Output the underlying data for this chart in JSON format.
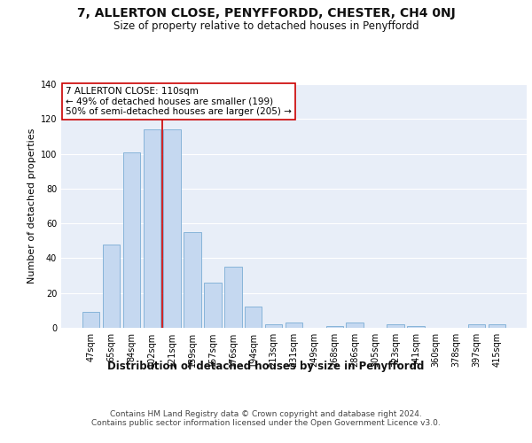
{
  "title": "7, ALLERTON CLOSE, PENYFFORDD, CHESTER, CH4 0NJ",
  "subtitle": "Size of property relative to detached houses in Penyffordd",
  "xlabel": "Distribution of detached houses by size in Penyffordd",
  "ylabel": "Number of detached properties",
  "categories": [
    "47sqm",
    "65sqm",
    "84sqm",
    "102sqm",
    "121sqm",
    "139sqm",
    "157sqm",
    "176sqm",
    "194sqm",
    "213sqm",
    "231sqm",
    "249sqm",
    "268sqm",
    "286sqm",
    "305sqm",
    "323sqm",
    "341sqm",
    "360sqm",
    "378sqm",
    "397sqm",
    "415sqm"
  ],
  "values": [
    9,
    48,
    101,
    114,
    114,
    55,
    26,
    35,
    12,
    2,
    3,
    0,
    1,
    3,
    0,
    2,
    1,
    0,
    0,
    2,
    2
  ],
  "bar_color": "#c5d8f0",
  "bar_edge_color": "#7aadd4",
  "background_color": "#e8eef8",
  "grid_color": "#ffffff",
  "vline_x": 3.5,
  "vline_color": "#cc0000",
  "annotation_text": "7 ALLERTON CLOSE: 110sqm\n← 49% of detached houses are smaller (199)\n50% of semi-detached houses are larger (205) →",
  "annotation_box_color": "#ffffff",
  "annotation_box_edge_color": "#cc0000",
  "ylim": [
    0,
    140
  ],
  "yticks": [
    0,
    20,
    40,
    60,
    80,
    100,
    120,
    140
  ],
  "footer": "Contains HM Land Registry data © Crown copyright and database right 2024.\nContains public sector information licensed under the Open Government Licence v3.0.",
  "title_fontsize": 10,
  "subtitle_fontsize": 8.5,
  "xlabel_fontsize": 8.5,
  "ylabel_fontsize": 8,
  "tick_fontsize": 7,
  "annotation_fontsize": 7.5,
  "footer_fontsize": 6.5
}
